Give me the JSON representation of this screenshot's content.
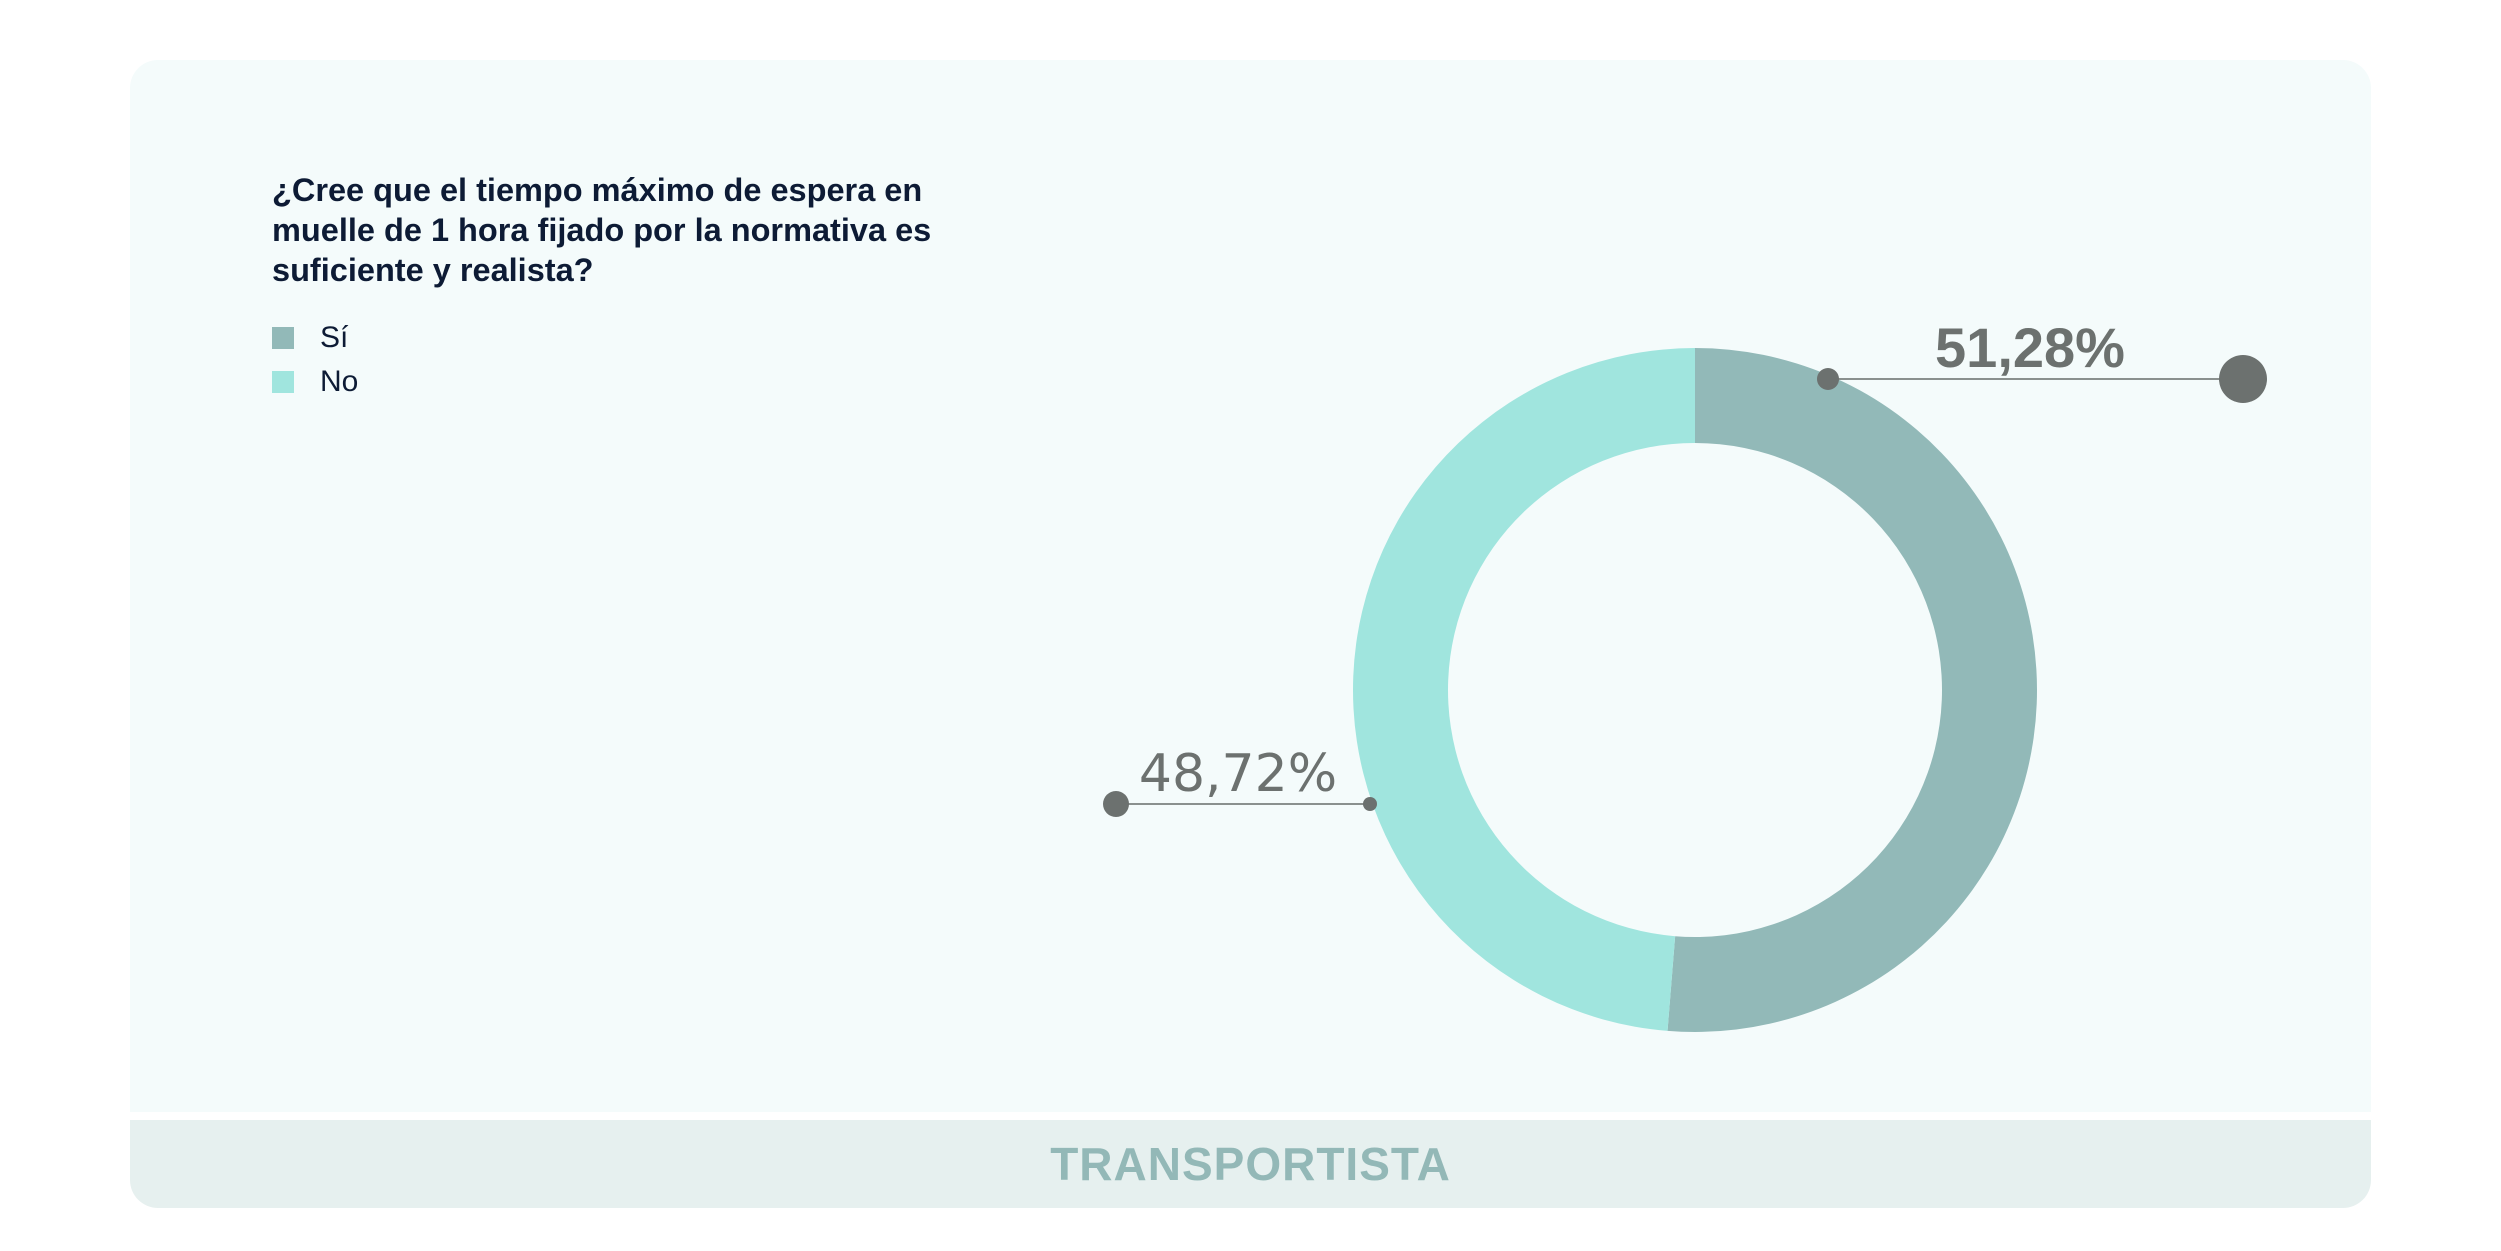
{
  "chart_data": {
    "type": "pie",
    "variant": "donut",
    "title": "¿Cree que el tiempo máximo de espera en muelle de 1 hora fijado por la normativa es suficiente y realista?",
    "categories": [
      "Sí",
      "No"
    ],
    "values": [
      51.28,
      48.72
    ],
    "value_labels": [
      "51,28%",
      "48,72%"
    ],
    "colors": [
      "#92b9b8",
      "#a0e5de"
    ],
    "legend_position": "top-left",
    "footer": "TRANSPORTISTA"
  },
  "question": {
    "line1": "¿Cree que el tiempo máximo de espera en",
    "line2": "muelle de 1 hora fijado por la normativa es",
    "line3": "suficiente y realista?"
  },
  "legend": {
    "items": [
      {
        "label": "Sí",
        "color": "#92b9b8"
      },
      {
        "label": "No",
        "color": "#a0e5de"
      }
    ]
  },
  "labels": {
    "si_value": "51,28%",
    "no_value": "48,72%"
  },
  "footer": {
    "label": "TRANSPORTISTA"
  },
  "colors": {
    "card_bg": "#f4fbfb",
    "footer_bg": "#e6f0ef",
    "footer_text": "#93b8b7",
    "title_text": "#0d1b35",
    "callout": "#6c716f"
  }
}
